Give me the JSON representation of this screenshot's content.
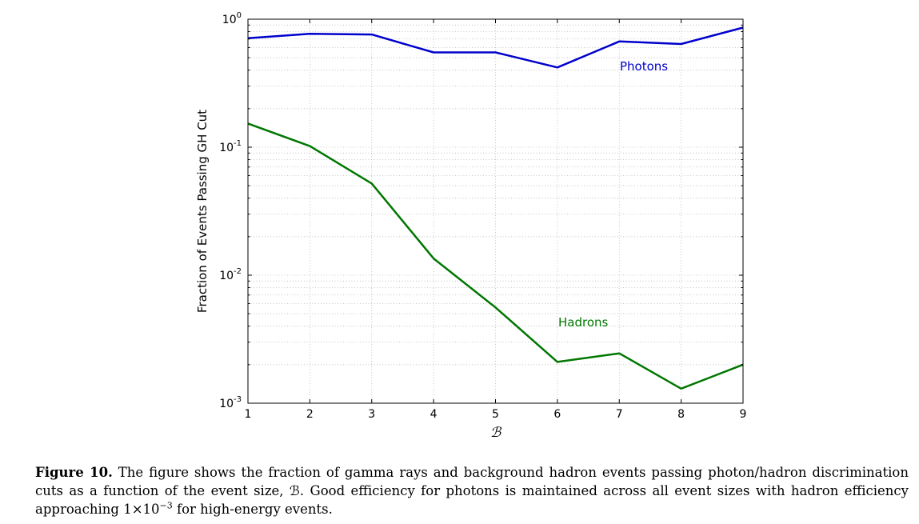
{
  "chart_data": {
    "type": "line",
    "xlabel": "ℬ",
    "ylabel": "Fraction of Events Passing GH Cut",
    "xlim": [
      1,
      9
    ],
    "ylim": [
      0.001,
      1
    ],
    "yscale": "log",
    "grid": true,
    "x": [
      1,
      2,
      3,
      4,
      5,
      6,
      7,
      8,
      9
    ],
    "x_ticks": [
      "1",
      "2",
      "3",
      "4",
      "5",
      "6",
      "7",
      "8",
      "9"
    ],
    "y_ticks": [
      {
        "value": 0.001,
        "base": "10",
        "exp": "-3"
      },
      {
        "value": 0.01,
        "base": "10",
        "exp": "-2"
      },
      {
        "value": 0.1,
        "base": "10",
        "exp": "-1"
      },
      {
        "value": 1,
        "base": "10",
        "exp": "0"
      }
    ],
    "series": [
      {
        "name": "Photons",
        "color": "#0000cc",
        "values": [
          0.71,
          0.77,
          0.76,
          0.55,
          0.55,
          0.42,
          0.67,
          0.64,
          0.86
        ]
      },
      {
        "name": "Hadrons",
        "color": "#007700",
        "values": [
          0.153,
          0.102,
          0.052,
          0.0135,
          0.0056,
          0.0021,
          0.00245,
          0.0013,
          0.002
        ]
      }
    ]
  },
  "caption": {
    "label": "Figure 10.",
    "text_before": "The figure shows the fraction of gamma rays and background hadron events passing photon/hadron discrimination cuts as a function of the event size, ℬ. Good efficiency for photons is maintained across all event sizes with hadron efficiency approaching 1×10",
    "exponent": "−3",
    "text_after": "for high-energy events."
  }
}
